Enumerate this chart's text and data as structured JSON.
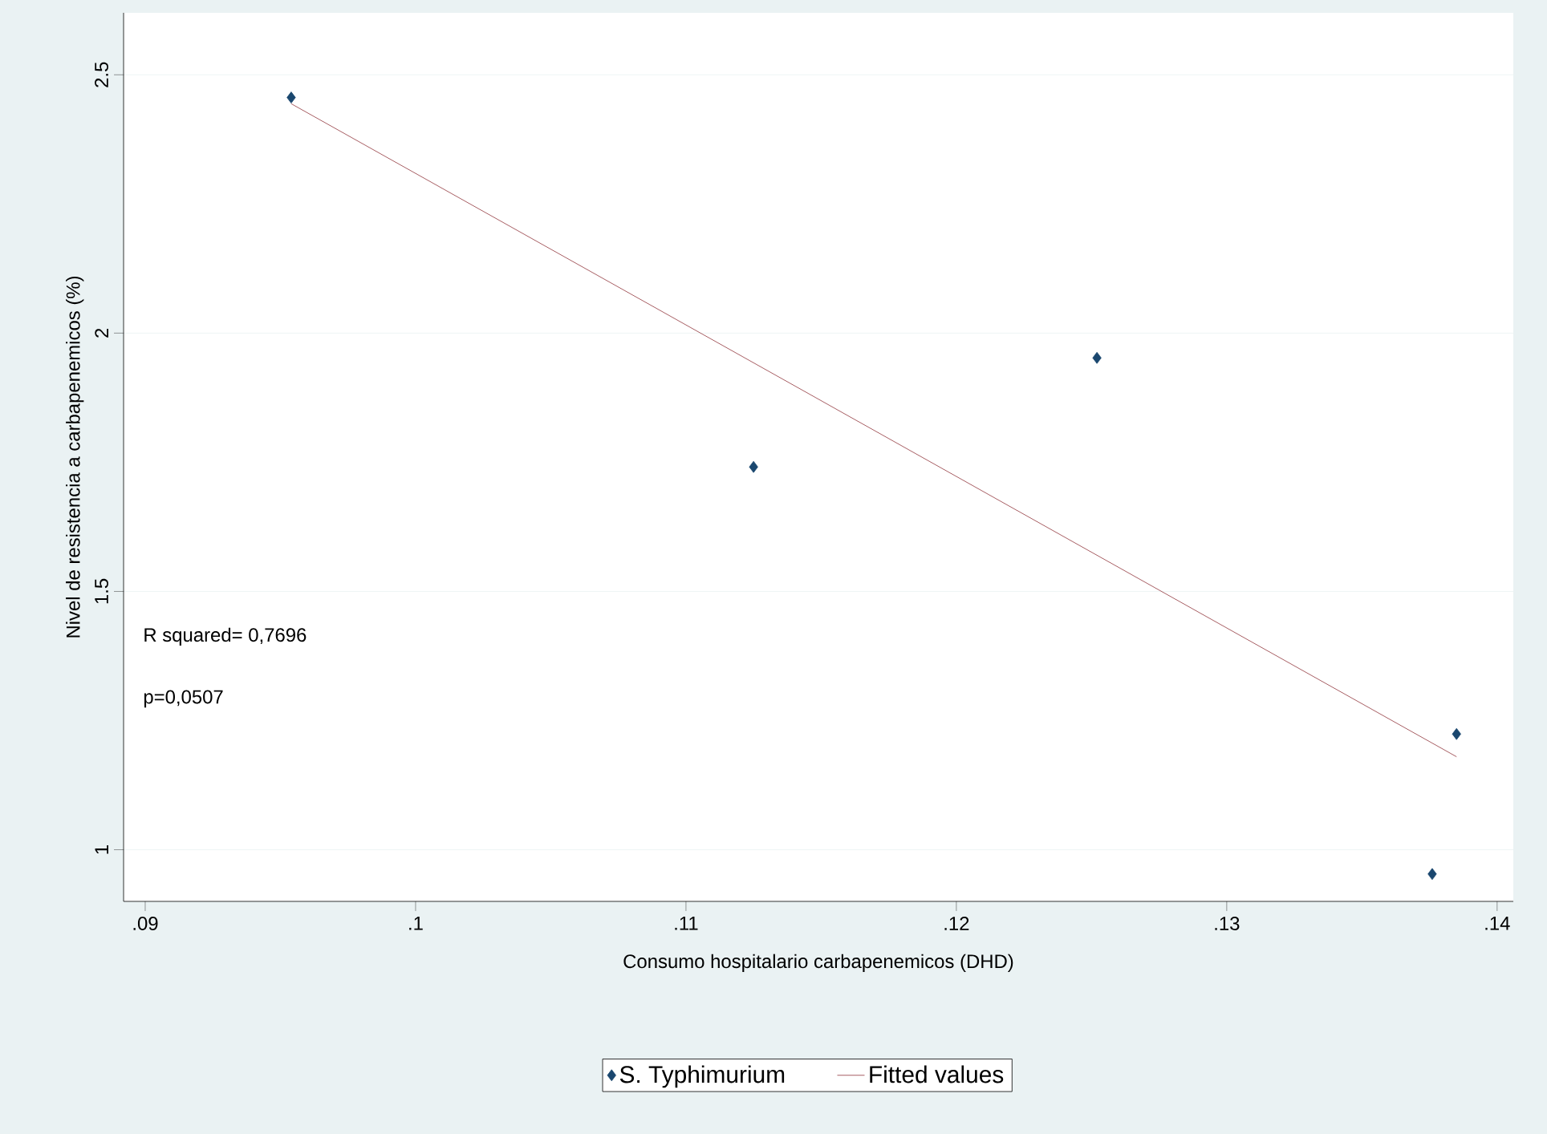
{
  "chart_data": {
    "type": "scatter",
    "xlabel": "Consumo hospitalario carbapenemicos (DHD)",
    "ylabel": "Nivel de resistencia a carbapenemicos (%)",
    "annotations": [
      "R squared= 0,7696",
      "p=0,0507"
    ],
    "xlim": [
      0.0892,
      0.1406
    ],
    "ylim": [
      0.9,
      2.62
    ],
    "xticks": [
      {
        "value": 0.09,
        "label": ".09"
      },
      {
        "value": 0.1,
        "label": ".1"
      },
      {
        "value": 0.11,
        "label": ".11"
      },
      {
        "value": 0.12,
        "label": ".12"
      },
      {
        "value": 0.13,
        "label": ".13"
      },
      {
        "value": 0.14,
        "label": ".14"
      }
    ],
    "yticks": [
      1,
      1.5,
      2,
      2.5
    ],
    "grid": "y",
    "legend": "bottom",
    "series": [
      {
        "name": "S. Typhimurium",
        "color": "#1a476f",
        "marker": "diamond",
        "x": [
          0.0954,
          0.1125,
          0.1252,
          0.1385,
          0.1376
        ],
        "values": [
          2.456,
          1.741,
          1.952,
          1.224,
          0.953
        ]
      },
      {
        "name": "Fitted values",
        "type": "line",
        "color": "#90353b",
        "marker": "none",
        "line_style": "solid",
        "x": [
          0.0954,
          0.1385
        ],
        "values": [
          2.444,
          1.18
        ]
      }
    ]
  }
}
